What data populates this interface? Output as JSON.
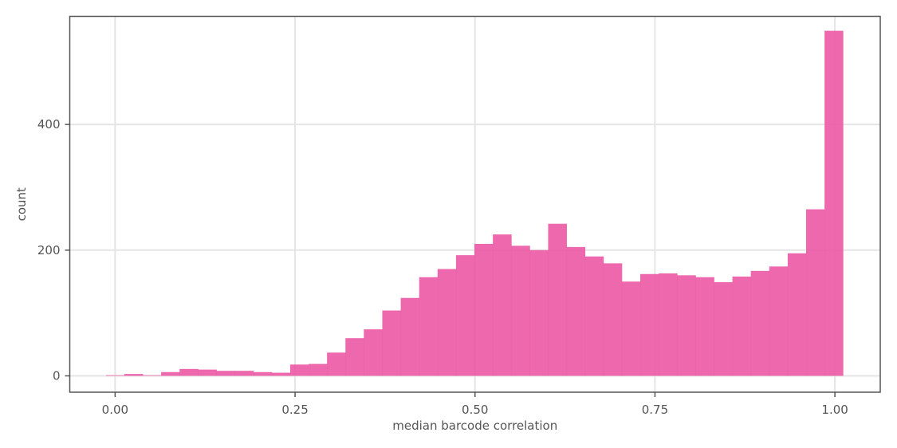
{
  "chart_data": {
    "type": "bar",
    "subtype": "histogram",
    "title": "",
    "xlabel": "median barcode correlation",
    "ylabel": "count",
    "xlim": [
      -0.063,
      1.063
    ],
    "ylim": [
      -26,
      572
    ],
    "grid": true,
    "bar_color": "#EC5BA5",
    "grid_color": "#E5E5E5",
    "panel_border_color": "#555555",
    "x_ticks": [
      {
        "value": 0.0,
        "label": "0.00"
      },
      {
        "value": 0.25,
        "label": "0.25"
      },
      {
        "value": 0.5,
        "label": "0.50"
      },
      {
        "value": 0.75,
        "label": "0.75"
      },
      {
        "value": 1.0,
        "label": "1.00"
      }
    ],
    "y_ticks": [
      {
        "value": 0,
        "label": "0"
      },
      {
        "value": 200,
        "label": "200"
      },
      {
        "value": 400,
        "label": "400"
      }
    ],
    "bin_width": 0.0256,
    "bin_start": -0.0128,
    "values": [
      1,
      3,
      1,
      6,
      11,
      10,
      8,
      8,
      6,
      5,
      18,
      19,
      37,
      60,
      74,
      104,
      124,
      157,
      170,
      192,
      210,
      225,
      207,
      200,
      242,
      205,
      190,
      179,
      150,
      162,
      163,
      160,
      157,
      149,
      158,
      167,
      174,
      195,
      265,
      549
    ]
  }
}
